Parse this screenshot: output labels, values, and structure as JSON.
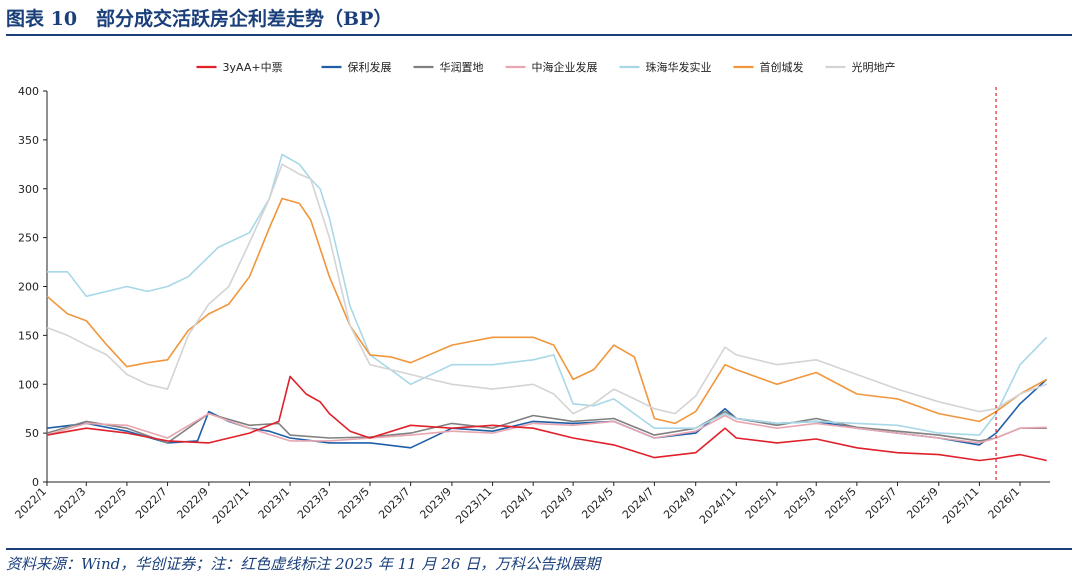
{
  "figure": {
    "title": "图表 10　部分成交活跃房企利差走势（BP）",
    "source": "资料来源：Wind，华创证券；注：红色虚线标注 2025 年 11 月 26 日，万科公告拟展期"
  },
  "chart_data": {
    "type": "line",
    "title": "",
    "xlabel": "",
    "ylabel": "",
    "ylim": [
      0,
      400
    ],
    "yticks": [
      0,
      50,
      100,
      150,
      200,
      250,
      300,
      350,
      400
    ],
    "xlim": [
      "2022-01-01",
      "2026-02-15"
    ],
    "xtick_labels": [
      "2022/1",
      "2022/3",
      "2022/5",
      "2022/7",
      "2022/9",
      "2022/11",
      "2023/1",
      "2023/3",
      "2023/5",
      "2023/7",
      "2023/9",
      "2023/11",
      "2024/1",
      "2024/3",
      "2024/5",
      "2024/7",
      "2024/9",
      "2024/11",
      "2025/1",
      "2025/3",
      "2025/5",
      "2025/7",
      "2025/9",
      "2025/11",
      "2026/1"
    ],
    "grid": false,
    "legend_position": "top",
    "annotation": {
      "date": "2025-11-26",
      "style": "red dashed vertical line"
    },
    "series": [
      {
        "name": "3yAA+中票",
        "color": "#e0202a",
        "points": [
          [
            "2022-01-01",
            48
          ],
          [
            "2022-03-01",
            55
          ],
          [
            "2022-05-01",
            50
          ],
          [
            "2022-07-01",
            42
          ],
          [
            "2022-09-01",
            40
          ],
          [
            "2022-11-01",
            50
          ],
          [
            "2022-12-15",
            62
          ],
          [
            "2023-01-01",
            108
          ],
          [
            "2023-01-25",
            90
          ],
          [
            "2023-02-15",
            82
          ],
          [
            "2023-03-01",
            70
          ],
          [
            "2023-04-01",
            52
          ],
          [
            "2023-05-01",
            45
          ],
          [
            "2023-07-01",
            58
          ],
          [
            "2023-09-01",
            55
          ],
          [
            "2023-11-01",
            58
          ],
          [
            "2024-01-01",
            55
          ],
          [
            "2024-03-01",
            45
          ],
          [
            "2024-05-01",
            38
          ],
          [
            "2024-07-01",
            25
          ],
          [
            "2024-09-01",
            30
          ],
          [
            "2024-10-15",
            55
          ],
          [
            "2024-11-01",
            45
          ],
          [
            "2025-01-01",
            40
          ],
          [
            "2025-03-01",
            44
          ],
          [
            "2025-05-01",
            35
          ],
          [
            "2025-07-01",
            30
          ],
          [
            "2025-09-01",
            28
          ],
          [
            "2025-11-01",
            22
          ],
          [
            "2025-11-26",
            24
          ],
          [
            "2026-01-01",
            28
          ],
          [
            "2026-02-10",
            22
          ]
        ]
      },
      {
        "name": "保利发展",
        "color": "#1f5fa8",
        "points": [
          [
            "2022-01-01",
            55
          ],
          [
            "2022-03-01",
            60
          ],
          [
            "2022-05-01",
            52
          ],
          [
            "2022-07-01",
            40
          ],
          [
            "2022-08-15",
            42
          ],
          [
            "2022-09-01",
            72
          ],
          [
            "2022-10-01",
            62
          ],
          [
            "2022-11-01",
            55
          ],
          [
            "2022-12-01",
            52
          ],
          [
            "2023-01-01",
            45
          ],
          [
            "2023-03-01",
            40
          ],
          [
            "2023-05-01",
            40
          ],
          [
            "2023-07-01",
            35
          ],
          [
            "2023-09-01",
            55
          ],
          [
            "2023-11-01",
            52
          ],
          [
            "2024-01-01",
            62
          ],
          [
            "2024-03-01",
            60
          ],
          [
            "2024-05-01",
            62
          ],
          [
            "2024-07-01",
            45
          ],
          [
            "2024-09-01",
            50
          ],
          [
            "2024-10-15",
            75
          ],
          [
            "2024-11-01",
            65
          ],
          [
            "2025-01-01",
            60
          ],
          [
            "2025-03-01",
            62
          ],
          [
            "2025-05-01",
            55
          ],
          [
            "2025-07-01",
            50
          ],
          [
            "2025-09-01",
            45
          ],
          [
            "2025-11-01",
            38
          ],
          [
            "2025-11-26",
            50
          ],
          [
            "2026-01-01",
            80
          ],
          [
            "2026-02-10",
            105
          ]
        ]
      },
      {
        "name": "华润置地",
        "color": "#808080",
        "points": [
          [
            "2022-01-01",
            50
          ],
          [
            "2022-03-01",
            62
          ],
          [
            "2022-05-01",
            55
          ],
          [
            "2022-07-01",
            40
          ],
          [
            "2022-09-01",
            70
          ],
          [
            "2022-11-01",
            58
          ],
          [
            "2022-12-15",
            60
          ],
          [
            "2023-01-01",
            48
          ],
          [
            "2023-03-01",
            45
          ],
          [
            "2023-05-01",
            46
          ],
          [
            "2023-07-01",
            50
          ],
          [
            "2023-09-01",
            60
          ],
          [
            "2023-11-01",
            55
          ],
          [
            "2024-01-01",
            68
          ],
          [
            "2024-03-01",
            62
          ],
          [
            "2024-05-01",
            65
          ],
          [
            "2024-07-01",
            48
          ],
          [
            "2024-09-01",
            55
          ],
          [
            "2024-10-15",
            72
          ],
          [
            "2024-11-01",
            65
          ],
          [
            "2025-01-01",
            58
          ],
          [
            "2025-03-01",
            65
          ],
          [
            "2025-05-01",
            56
          ],
          [
            "2025-07-01",
            52
          ],
          [
            "2025-09-01",
            48
          ],
          [
            "2025-11-01",
            42
          ],
          [
            "2025-11-26",
            45
          ],
          [
            "2026-01-01",
            55
          ],
          [
            "2026-02-10",
            55
          ]
        ]
      },
      {
        "name": "中海企业发展",
        "color": "#e8a6b0",
        "points": [
          [
            "2022-01-01",
            48
          ],
          [
            "2022-03-01",
            60
          ],
          [
            "2022-05-01",
            58
          ],
          [
            "2022-07-01",
            45
          ],
          [
            "2022-09-01",
            70
          ],
          [
            "2022-11-01",
            55
          ],
          [
            "2023-01-01",
            42
          ],
          [
            "2023-03-01",
            42
          ],
          [
            "2023-05-01",
            45
          ],
          [
            "2023-07-01",
            48
          ],
          [
            "2023-09-01",
            52
          ],
          [
            "2023-11-01",
            50
          ],
          [
            "2024-01-01",
            60
          ],
          [
            "2024-03-01",
            58
          ],
          [
            "2024-05-01",
            62
          ],
          [
            "2024-07-01",
            45
          ],
          [
            "2024-09-01",
            52
          ],
          [
            "2024-10-15",
            68
          ],
          [
            "2024-11-01",
            62
          ],
          [
            "2025-01-01",
            55
          ],
          [
            "2025-03-01",
            60
          ],
          [
            "2025-05-01",
            55
          ],
          [
            "2025-07-01",
            50
          ],
          [
            "2025-09-01",
            45
          ],
          [
            "2025-11-01",
            40
          ],
          [
            "2025-11-26",
            45
          ],
          [
            "2026-01-01",
            55
          ],
          [
            "2026-02-10",
            56
          ]
        ]
      },
      {
        "name": "珠海华发实业",
        "color": "#a8d8e8",
        "points": [
          [
            "2022-01-01",
            215
          ],
          [
            "2022-02-01",
            215
          ],
          [
            "2022-03-01",
            190
          ],
          [
            "2022-04-01",
            195
          ],
          [
            "2022-05-01",
            200
          ],
          [
            "2022-06-01",
            195
          ],
          [
            "2022-07-01",
            200
          ],
          [
            "2022-08-01",
            210
          ],
          [
            "2022-09-15",
            240
          ],
          [
            "2022-11-01",
            255
          ],
          [
            "2022-12-01",
            290
          ],
          [
            "2022-12-20",
            335
          ],
          [
            "2023-01-15",
            325
          ],
          [
            "2023-02-01",
            310
          ],
          [
            "2023-02-15",
            300
          ],
          [
            "2023-03-01",
            270
          ],
          [
            "2023-04-01",
            180
          ],
          [
            "2023-05-01",
            130
          ],
          [
            "2023-06-01",
            115
          ],
          [
            "2023-07-01",
            100
          ],
          [
            "2023-09-01",
            120
          ],
          [
            "2023-11-01",
            120
          ],
          [
            "2024-01-01",
            125
          ],
          [
            "2024-02-01",
            130
          ],
          [
            "2024-03-01",
            80
          ],
          [
            "2024-04-01",
            78
          ],
          [
            "2024-05-01",
            85
          ],
          [
            "2024-07-01",
            55
          ],
          [
            "2024-09-01",
            55
          ],
          [
            "2024-10-15",
            70
          ],
          [
            "2024-11-01",
            65
          ],
          [
            "2025-01-01",
            60
          ],
          [
            "2025-03-01",
            62
          ],
          [
            "2025-05-01",
            60
          ],
          [
            "2025-07-01",
            58
          ],
          [
            "2025-09-01",
            50
          ],
          [
            "2025-11-01",
            48
          ],
          [
            "2025-11-26",
            70
          ],
          [
            "2026-01-01",
            120
          ],
          [
            "2026-02-10",
            148
          ]
        ]
      },
      {
        "name": "首创城发",
        "color": "#f0963c",
        "points": [
          [
            "2022-01-01",
            190
          ],
          [
            "2022-02-01",
            172
          ],
          [
            "2022-03-01",
            165
          ],
          [
            "2022-04-01",
            140
          ],
          [
            "2022-05-01",
            118
          ],
          [
            "2022-06-01",
            122
          ],
          [
            "2022-07-01",
            125
          ],
          [
            "2022-08-01",
            155
          ],
          [
            "2022-09-01",
            172
          ],
          [
            "2022-10-01",
            182
          ],
          [
            "2022-11-01",
            210
          ],
          [
            "2022-12-01",
            260
          ],
          [
            "2022-12-20",
            290
          ],
          [
            "2023-01-15",
            285
          ],
          [
            "2023-02-01",
            268
          ],
          [
            "2023-03-01",
            210
          ],
          [
            "2023-04-01",
            160
          ],
          [
            "2023-05-01",
            130
          ],
          [
            "2023-06-01",
            128
          ],
          [
            "2023-07-01",
            122
          ],
          [
            "2023-09-01",
            140
          ],
          [
            "2023-11-01",
            148
          ],
          [
            "2024-01-01",
            148
          ],
          [
            "2024-02-01",
            140
          ],
          [
            "2024-03-01",
            105
          ],
          [
            "2024-04-01",
            115
          ],
          [
            "2024-05-01",
            140
          ],
          [
            "2024-06-01",
            128
          ],
          [
            "2024-07-01",
            65
          ],
          [
            "2024-08-01",
            60
          ],
          [
            "2024-09-01",
            72
          ],
          [
            "2024-10-15",
            120
          ],
          [
            "2024-11-01",
            115
          ],
          [
            "2025-01-01",
            100
          ],
          [
            "2025-03-01",
            112
          ],
          [
            "2025-05-01",
            90
          ],
          [
            "2025-07-01",
            85
          ],
          [
            "2025-09-01",
            70
          ],
          [
            "2025-11-01",
            62
          ],
          [
            "2025-11-26",
            72
          ],
          [
            "2026-01-01",
            90
          ],
          [
            "2026-02-10",
            105
          ]
        ]
      },
      {
        "name": "光明地产",
        "color": "#d4d4d4",
        "points": [
          [
            "2022-01-01",
            158
          ],
          [
            "2022-02-01",
            150
          ],
          [
            "2022-03-01",
            140
          ],
          [
            "2022-04-01",
            130
          ],
          [
            "2022-05-01",
            110
          ],
          [
            "2022-06-01",
            100
          ],
          [
            "2022-07-01",
            95
          ],
          [
            "2022-08-01",
            150
          ],
          [
            "2022-09-01",
            182
          ],
          [
            "2022-10-01",
            200
          ],
          [
            "2022-11-01",
            245
          ],
          [
            "2022-12-01",
            290
          ],
          [
            "2022-12-20",
            325
          ],
          [
            "2023-01-15",
            315
          ],
          [
            "2023-02-01",
            310
          ],
          [
            "2023-03-01",
            250
          ],
          [
            "2023-04-01",
            160
          ],
          [
            "2023-05-01",
            120
          ],
          [
            "2023-06-01",
            115
          ],
          [
            "2023-07-01",
            110
          ],
          [
            "2023-09-01",
            100
          ],
          [
            "2023-11-01",
            95
          ],
          [
            "2024-01-01",
            100
          ],
          [
            "2024-02-01",
            90
          ],
          [
            "2024-03-01",
            70
          ],
          [
            "2024-04-01",
            80
          ],
          [
            "2024-05-01",
            95
          ],
          [
            "2024-06-01",
            85
          ],
          [
            "2024-07-01",
            75
          ],
          [
            "2024-08-01",
            70
          ],
          [
            "2024-09-01",
            88
          ],
          [
            "2024-10-15",
            138
          ],
          [
            "2024-11-01",
            130
          ],
          [
            "2025-01-01",
            120
          ],
          [
            "2025-03-01",
            125
          ],
          [
            "2025-05-01",
            110
          ],
          [
            "2025-07-01",
            95
          ],
          [
            "2025-09-01",
            82
          ],
          [
            "2025-11-01",
            72
          ],
          [
            "2025-11-26",
            75
          ],
          [
            "2026-01-01",
            90
          ],
          [
            "2026-02-10",
            100
          ]
        ]
      }
    ]
  }
}
